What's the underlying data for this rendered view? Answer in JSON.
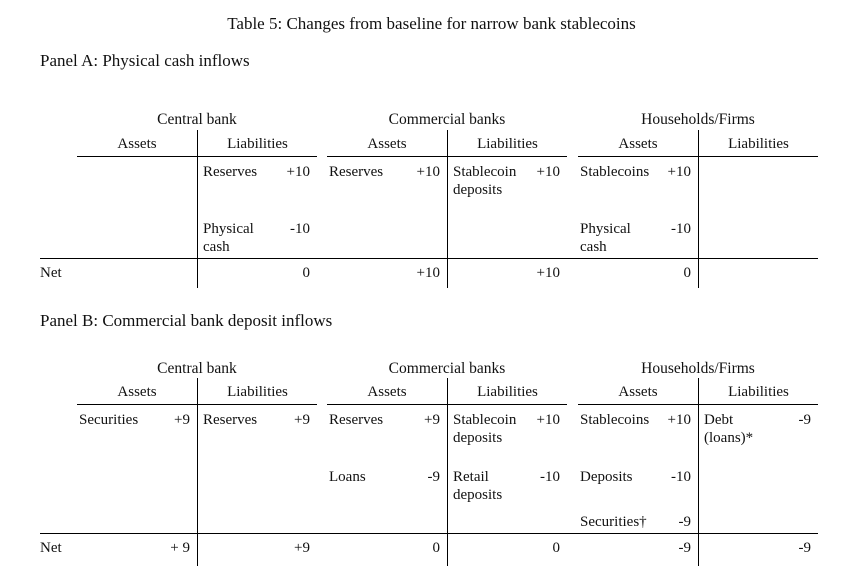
{
  "title": "Table 5: Changes from baseline for narrow bank stablecoins",
  "col_headers": {
    "assets": "Assets",
    "liabilities": "Liabilities"
  },
  "panels": [
    {
      "label": "Panel A: Physical cash inflows",
      "groups": [
        "Central bank",
        "Commercial banks",
        "Households/Firms"
      ],
      "rows": [
        {
          "cells": [
            {
              "item": "",
              "amt": ""
            },
            {
              "item": "Reserves",
              "amt": "+10"
            },
            {
              "item": "Reserves",
              "amt": "+10"
            },
            {
              "item": "Stablecoin deposits",
              "amt": "+10"
            },
            {
              "item": "Stablecoins",
              "amt": "+10"
            },
            {
              "item": "",
              "amt": ""
            }
          ]
        },
        {
          "cells": [
            {
              "item": "",
              "amt": ""
            },
            {
              "item": "Physical cash",
              "amt": "-10"
            },
            {
              "item": "",
              "amt": ""
            },
            {
              "item": "",
              "amt": ""
            },
            {
              "item": "Physical cash",
              "amt": "-10"
            },
            {
              "item": "",
              "amt": ""
            }
          ]
        }
      ],
      "net": {
        "label": "Net",
        "values": [
          "",
          "0",
          "+10",
          "+10",
          "0",
          ""
        ]
      }
    },
    {
      "label": "Panel B: Commercial bank deposit inflows",
      "groups": [
        "Central bank",
        "Commercial banks",
        "Households/Firms"
      ],
      "rows": [
        {
          "cells": [
            {
              "item": "Securities",
              "amt": "+9"
            },
            {
              "item": "Reserves",
              "amt": "+9"
            },
            {
              "item": "Reserves",
              "amt": "+9"
            },
            {
              "item": "Stablecoin deposits",
              "amt": "+10"
            },
            {
              "item": "Stablecoins",
              "amt": "+10"
            },
            {
              "item": "Debt (loans)*",
              "amt": "-9"
            }
          ]
        },
        {
          "cells": [
            {
              "item": "",
              "amt": ""
            },
            {
              "item": "",
              "amt": ""
            },
            {
              "item": "Loans",
              "amt": "-9"
            },
            {
              "item": "Retail deposits",
              "amt": "-10"
            },
            {
              "item": "Deposits",
              "amt": "-10"
            },
            {
              "item": "",
              "amt": ""
            }
          ]
        },
        {
          "cells": [
            {
              "item": "",
              "amt": ""
            },
            {
              "item": "",
              "amt": ""
            },
            {
              "item": "",
              "amt": ""
            },
            {
              "item": "",
              "amt": ""
            },
            {
              "item": "Securities†",
              "amt": "-9"
            },
            {
              "item": "",
              "amt": ""
            }
          ]
        }
      ],
      "net": {
        "label": "Net",
        "values": [
          "+ 9",
          "+9",
          "0",
          "0",
          "-9",
          "-9"
        ]
      }
    }
  ]
}
